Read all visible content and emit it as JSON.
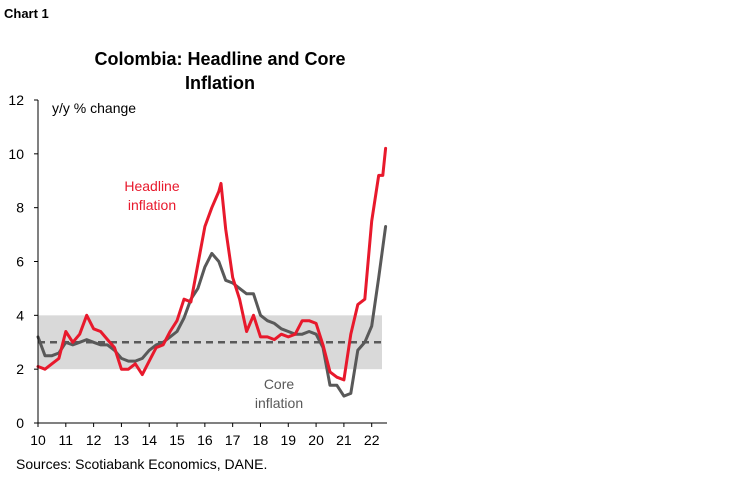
{
  "chart_label": "Chart 1",
  "source": "Sources: Scotiabank Economics, DANE.",
  "colors": {
    "headline": "#e8192c",
    "core": "#595959",
    "band": "#d9d9d9",
    "target": "#595959"
  },
  "chart_data": {
    "type": "line",
    "title": "Colombia: Headline and Core Inflation",
    "title_lines": [
      "Colombia: Headline and Core",
      "Inflation"
    ],
    "ylabel": "y/y % change",
    "xlabel": "",
    "x_ticks": [
      "10",
      "11",
      "12",
      "13",
      "14",
      "15",
      "16",
      "17",
      "18",
      "19",
      "20",
      "21",
      "22"
    ],
    "y_ticks": [
      0,
      2,
      4,
      6,
      8,
      10,
      12
    ],
    "xlim": [
      2010.0,
      2022.55
    ],
    "ylim": [
      0,
      12
    ],
    "grid": false,
    "target_band": {
      "low": 2,
      "high": 4
    },
    "target_line": 3,
    "annotations": [
      {
        "series": "headline",
        "lines": [
          "Headline",
          "inflation"
        ]
      },
      {
        "series": "core",
        "lines": [
          "Core",
          "inflation"
        ]
      }
    ],
    "series": [
      {
        "name": "Headline inflation",
        "key": "headline",
        "x": [
          2010.0,
          2010.25,
          2010.5,
          2010.75,
          2011.0,
          2011.25,
          2011.5,
          2011.75,
          2012.0,
          2012.25,
          2012.5,
          2012.75,
          2013.0,
          2013.25,
          2013.5,
          2013.75,
          2014.0,
          2014.25,
          2014.5,
          2014.75,
          2015.0,
          2015.25,
          2015.5,
          2015.75,
          2016.0,
          2016.25,
          2016.5,
          2016.58,
          2016.75,
          2017.0,
          2017.25,
          2017.5,
          2017.75,
          2018.0,
          2018.25,
          2018.5,
          2018.75,
          2019.0,
          2019.25,
          2019.5,
          2019.75,
          2020.0,
          2020.25,
          2020.5,
          2020.75,
          2021.0,
          2021.25,
          2021.5,
          2021.75,
          2022.0,
          2022.25,
          2022.4,
          2022.5
        ],
        "values": [
          2.1,
          2.0,
          2.2,
          2.4,
          3.4,
          3.0,
          3.3,
          4.0,
          3.5,
          3.4,
          3.1,
          2.8,
          2.0,
          2.0,
          2.2,
          1.8,
          2.3,
          2.8,
          2.9,
          3.4,
          3.8,
          4.6,
          4.5,
          5.9,
          7.3,
          8.0,
          8.6,
          8.9,
          7.2,
          5.4,
          4.6,
          3.4,
          4.0,
          3.2,
          3.2,
          3.1,
          3.3,
          3.2,
          3.3,
          3.8,
          3.8,
          3.7,
          2.9,
          1.9,
          1.7,
          1.6,
          3.3,
          4.4,
          4.6,
          7.5,
          9.2,
          9.2,
          10.2
        ]
      },
      {
        "name": "Core inflation",
        "key": "core",
        "x": [
          2010.0,
          2010.25,
          2010.5,
          2010.75,
          2011.0,
          2011.25,
          2011.5,
          2011.75,
          2012.0,
          2012.25,
          2012.5,
          2012.75,
          2013.0,
          2013.25,
          2013.5,
          2013.75,
          2014.0,
          2014.25,
          2014.5,
          2014.75,
          2015.0,
          2015.25,
          2015.5,
          2015.75,
          2016.0,
          2016.25,
          2016.5,
          2016.75,
          2017.0,
          2017.25,
          2017.5,
          2017.75,
          2018.0,
          2018.25,
          2018.5,
          2018.75,
          2019.0,
          2019.25,
          2019.5,
          2019.75,
          2020.0,
          2020.25,
          2020.5,
          2020.75,
          2021.0,
          2021.25,
          2021.5,
          2021.75,
          2022.0,
          2022.25,
          2022.5
        ],
        "values": [
          3.2,
          2.5,
          2.5,
          2.6,
          3.0,
          2.9,
          3.0,
          3.1,
          3.0,
          2.9,
          2.9,
          2.7,
          2.4,
          2.3,
          2.3,
          2.4,
          2.7,
          2.9,
          3.0,
          3.2,
          3.4,
          3.9,
          4.6,
          5.0,
          5.8,
          6.3,
          6.0,
          5.3,
          5.2,
          5.0,
          4.8,
          4.8,
          4.0,
          3.8,
          3.7,
          3.5,
          3.4,
          3.3,
          3.3,
          3.4,
          3.3,
          2.8,
          1.4,
          1.4,
          1.0,
          1.1,
          2.7,
          3.0,
          3.6,
          5.4,
          7.3
        ]
      }
    ]
  }
}
